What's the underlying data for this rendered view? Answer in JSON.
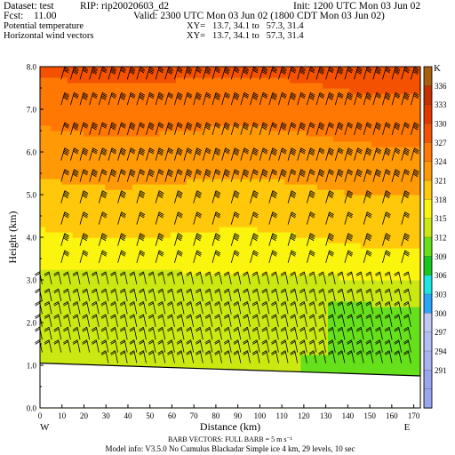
{
  "header": {
    "dataset_label": "Dataset: test",
    "rip_label": "RIP: rip20020603_d2",
    "init_label": "Init: 1200 UTC Mon 03 Jun 02",
    "fcst_label": "Fcst:",
    "fcst_value": "11.00",
    "valid_label": "Valid: 2300 UTC Mon 03 Jun 02 (1800 CDT Mon 03 Jun 02)",
    "field1_name": "Potential temperature",
    "field1_xy": "XY=   13.7, 34.1 to   57.3, 31.4",
    "field2_name": "Horizontal wind vectors",
    "field2_xy": "XY=   13.7, 34.1 to   57.3, 31.4"
  },
  "plot": {
    "y_axis_label": "Height (km)",
    "x_axis_label": "Distance (km)",
    "y_ticks": [
      "0.0",
      "1.0",
      "2.0",
      "3.0",
      "4.0",
      "5.0",
      "6.0",
      "7.0",
      "8.0"
    ],
    "x_ticks": [
      "0",
      "10",
      "20",
      "30",
      "40",
      "50",
      "60",
      "70",
      "80",
      "90",
      "100",
      "110",
      "120",
      "130",
      "140",
      "150",
      "160",
      "170"
    ],
    "left_endpoint": "W",
    "right_endpoint": "E"
  },
  "colorbar": {
    "unit": "K",
    "labels": [
      "336",
      "333",
      "330",
      "327",
      "324",
      "321",
      "318",
      "315",
      "312",
      "309",
      "306",
      "303",
      "300",
      "297",
      "294",
      "291"
    ]
  },
  "footer": {
    "barb_text": "BARB VECTORS:  FULL BARB = 5 m s⁻¹",
    "model_info": "Model info: V3.5.0 No Cumulus Blackadar  Simple ice    4 km,  29 levels,   10 sec"
  },
  "chart_data": {
    "type": "heatmap",
    "x_range_km": [
      0,
      173
    ],
    "y_range_km": [
      0,
      8
    ],
    "field": "Potential temperature (K) cross-section with wind barbs",
    "contour_levels": [
      291,
      294,
      297,
      300,
      303,
      306,
      309,
      312,
      315,
      318,
      321,
      324,
      327,
      330,
      333,
      336
    ],
    "terrain_height_km": {
      "x": [
        0,
        173
      ],
      "y": [
        1.05,
        0.75
      ]
    },
    "colors": {
      "291": "#9aa6f0",
      "294": "#a8b4f2",
      "297": "#b4bef4",
      "300": "#c0c8f4",
      "303": "#2aa6f8",
      "306": "#1ce6e0",
      "309": "#18c81e",
      "312": "#66e01a",
      "315": "#cce812",
      "318": "#faf40e",
      "321": "#ffc80a",
      "324": "#ff9a06",
      "327": "#ff7804",
      "330": "#f45200",
      "333": "#e03800",
      "336": "#c43000",
      "339": "#a86010"
    }
  }
}
